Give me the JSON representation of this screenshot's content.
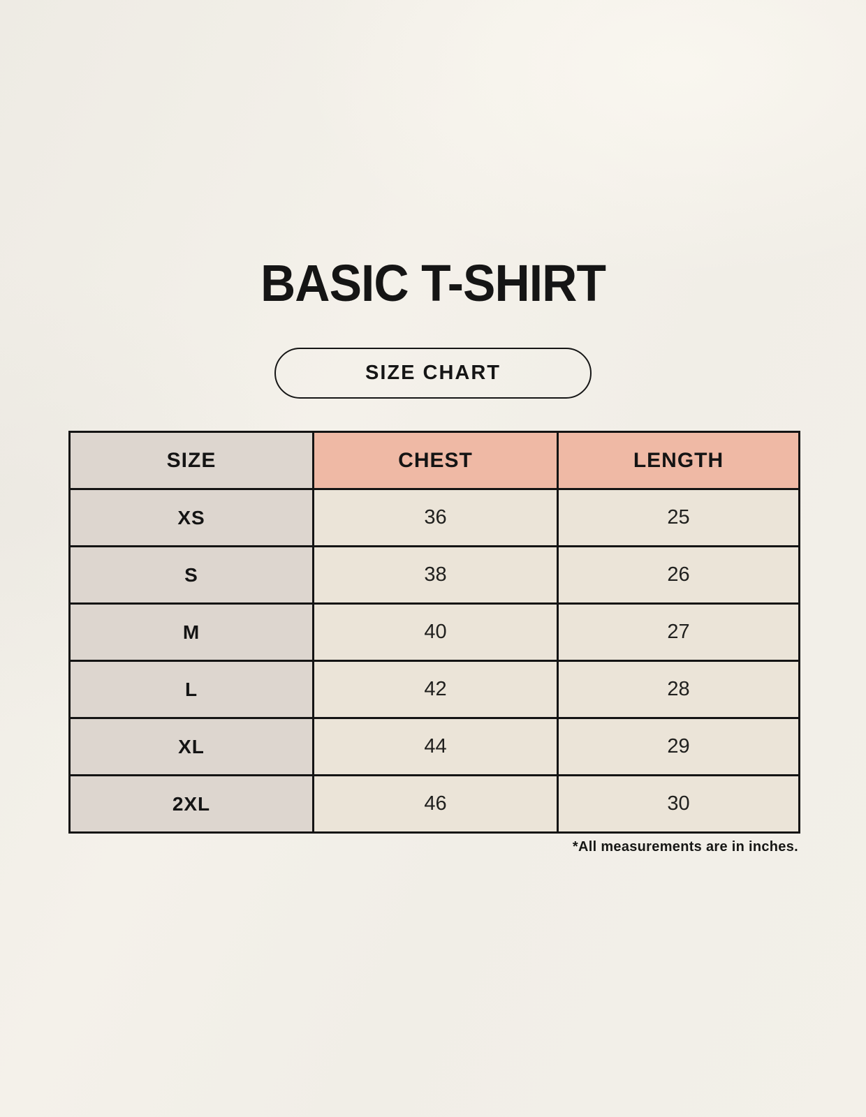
{
  "page": {
    "title": "BASIC T-SHIRT",
    "badge_label": "SIZE CHART",
    "footnote": "*All measurements are in inches."
  },
  "table": {
    "headers": [
      "SIZE",
      "CHEST",
      "LENGTH"
    ],
    "rows": [
      [
        "XS",
        "36",
        "25"
      ],
      [
        "S",
        "38",
        "26"
      ],
      [
        "M",
        "40",
        "27"
      ],
      [
        "L",
        "42",
        "28"
      ],
      [
        "XL",
        "44",
        "29"
      ],
      [
        "2XL",
        "46",
        "30"
      ]
    ]
  },
  "chart_data": {
    "type": "table",
    "title": "BASIC T-SHIRT",
    "subtitle": "SIZE CHART",
    "columns": [
      "SIZE",
      "CHEST",
      "LENGTH"
    ],
    "rows": [
      [
        "XS",
        36,
        25
      ],
      [
        "S",
        38,
        26
      ],
      [
        "M",
        40,
        27
      ],
      [
        "L",
        42,
        28
      ],
      [
        "XL",
        44,
        29
      ],
      [
        "2XL",
        46,
        30
      ]
    ],
    "units": "inches",
    "note": "*All measurements are in inches."
  },
  "colors": {
    "background": "#f2efe8",
    "header_pink": "#efb9a5",
    "cell_gray": "#ddd6cf",
    "cell_cream": "#ebe4d8",
    "border": "#141414",
    "text": "#1a1a1a"
  }
}
